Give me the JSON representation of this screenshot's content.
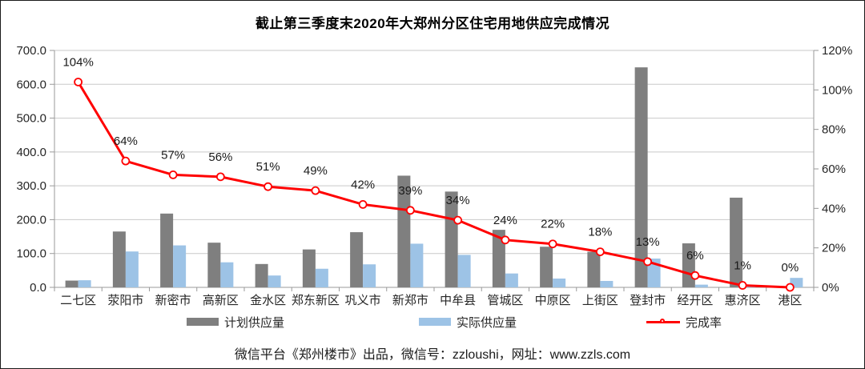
{
  "title": "截止第三季度末2020年大郑州分区住宅用地供应完成情况",
  "footer": {
    "text": "微信平台《郑州楼市》出品，微信号：zzloushi，网址：www.zzls.com"
  },
  "colors": {
    "planned_bar": "#7F7F7F",
    "actual_bar": "#9DC3E6",
    "rate_line": "#FF0000",
    "gridline": "#C9C9C9",
    "axis_line": "#9A9A9A",
    "text": "#262626"
  },
  "chart_data": {
    "type": "bar",
    "subtype": "combo-bar-line",
    "title": "截止第三季度末2020年大郑州分区住宅用地供应完成情况",
    "categories": [
      "二七区",
      "荥阳市",
      "新密市",
      "高新区",
      "金水区",
      "郑东新区",
      "巩义市",
      "新郑市",
      "中牟县",
      "管城区",
      "中原区",
      "上街区",
      "登封市",
      "经开区",
      "惠济区",
      "港区"
    ],
    "series": [
      {
        "name": "计划供应量",
        "type": "bar",
        "axis": "left",
        "color": "#7F7F7F",
        "values": [
          20,
          165,
          218,
          132,
          69,
          112,
          163,
          330,
          283,
          170,
          120,
          105,
          650,
          130,
          265,
          0
        ]
      },
      {
        "name": "实际供应量",
        "type": "bar",
        "axis": "left",
        "color": "#9DC3E6",
        "values": [
          21,
          106,
          124,
          74,
          35,
          55,
          68,
          129,
          96,
          41,
          26,
          19,
          85,
          8,
          3,
          28
        ]
      },
      {
        "name": "完成率",
        "type": "line",
        "axis": "right",
        "color": "#FF0000",
        "values": [
          104,
          64,
          57,
          56,
          51,
          49,
          42,
          39,
          34,
          24,
          22,
          18,
          13,
          6,
          1,
          0
        ],
        "data_labels": [
          "104%",
          "64%",
          "57%",
          "56%",
          "51%",
          "49%",
          "42%",
          "39%",
          "34%",
          "24%",
          "22%",
          "18%",
          "13%",
          "6%",
          "1%",
          "0%"
        ]
      }
    ],
    "left_axis": {
      "min": 0,
      "max": 700,
      "step": 100,
      "ticks": [
        "0.0",
        "100.0",
        "200.0",
        "300.0",
        "400.0",
        "500.0",
        "600.0",
        "700.0"
      ]
    },
    "right_axis": {
      "min": 0,
      "max": 120,
      "step": 20,
      "ticks": [
        "0%",
        "20%",
        "40%",
        "60%",
        "80%",
        "100%",
        "120%"
      ]
    },
    "grid": true,
    "legend_position": "bottom",
    "xlabel": "",
    "ylabel": ""
  },
  "legend": {
    "items": [
      {
        "label": "计划供应量",
        "swatch": "bar",
        "color": "#7F7F7F"
      },
      {
        "label": "实际供应量",
        "swatch": "bar",
        "color": "#9DC3E6"
      },
      {
        "label": "完成率",
        "swatch": "line",
        "color": "#FF0000"
      }
    ]
  }
}
